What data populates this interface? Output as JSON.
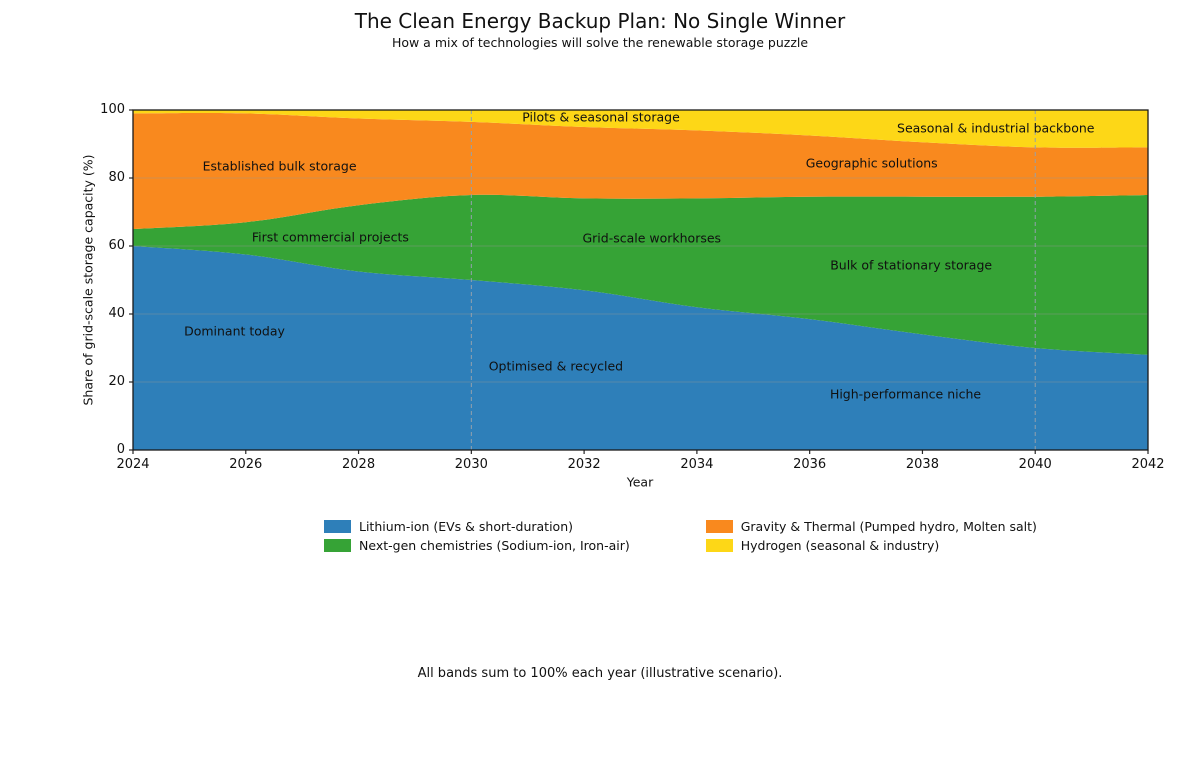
{
  "title": "The Clean Energy Backup Plan: No Single Winner",
  "subtitle": "How a mix of technologies will solve the renewable storage puzzle",
  "footnote": "All bands sum to 100% each year (illustrative scenario).",
  "chart_data": {
    "type": "area",
    "stacked": true,
    "title": "The Clean Energy Backup Plan: No Single Winner",
    "subtitle": "How a mix of technologies will solve the renewable storage puzzle",
    "xlabel": "Year",
    "ylabel": "Share of grid-scale storage capacity (%)",
    "xlim": [
      2024,
      2042
    ],
    "ylim": [
      0,
      100
    ],
    "x": [
      2024,
      2026,
      2028,
      2030,
      2032,
      2034,
      2036,
      2038,
      2040,
      2042
    ],
    "x_ticks": [
      2024,
      2026,
      2028,
      2030,
      2032,
      2034,
      2036,
      2038,
      2040,
      2042
    ],
    "y_ticks": [
      0,
      20,
      40,
      60,
      80,
      100
    ],
    "grid": "horizontal",
    "legend_position": "bottom",
    "vlines": [
      2030,
      2040
    ],
    "series": [
      {
        "name": "Lithium-ion (EVs & short-duration)",
        "color": "#2e7fb9",
        "values": [
          60,
          57.5,
          52.5,
          50,
          47,
          42,
          38.5,
          34,
          30,
          28
        ]
      },
      {
        "name": "Next-gen chemistries (Sodium-ion, Iron-air)",
        "color": "#36a336",
        "values": [
          5,
          9.5,
          19.5,
          25,
          27,
          32,
          36,
          40.5,
          44.5,
          47
        ]
      },
      {
        "name": "Gravity & Thermal (Pumped hydro, Molten salt)",
        "color": "#f9891e",
        "values": [
          34,
          32,
          25.5,
          21.5,
          21,
          20,
          18,
          16,
          14.5,
          14
        ]
      },
      {
        "name": "Hydrogen (seasonal & industry)",
        "color": "#fdd717",
        "values": [
          1,
          1,
          2.5,
          3.5,
          5,
          6,
          7.5,
          9.5,
          11,
          11
        ]
      }
    ],
    "annotations": [
      {
        "text": "Dominant today",
        "x": 2025.8,
        "y": 35
      },
      {
        "text": "Optimised & recycled",
        "x": 2031.5,
        "y": 24.7
      },
      {
        "text": "High-performance niche",
        "x": 2037.7,
        "y": 16.5
      },
      {
        "text": "First commercial projects",
        "x": 2027.5,
        "y": 62.6
      },
      {
        "text": "Grid-scale workhorses",
        "x": 2033.2,
        "y": 62.4
      },
      {
        "text": "Bulk of stationary storage",
        "x": 2037.8,
        "y": 54.4
      },
      {
        "text": "Established bulk storage",
        "x": 2026.6,
        "y": 83.5
      },
      {
        "text": "Geographic solutions",
        "x": 2037.1,
        "y": 84.4
      },
      {
        "text": "Pilots & seasonal storage",
        "x": 2032.3,
        "y": 97.9
      },
      {
        "text": "Seasonal & industrial backbone",
        "x": 2039.3,
        "y": 94.7
      }
    ],
    "colors": {
      "frame": "#1a1a1a",
      "tick": "#262626",
      "gridline": "rgba(150,150,150,0.4)",
      "vline": "#93a1ad"
    }
  }
}
